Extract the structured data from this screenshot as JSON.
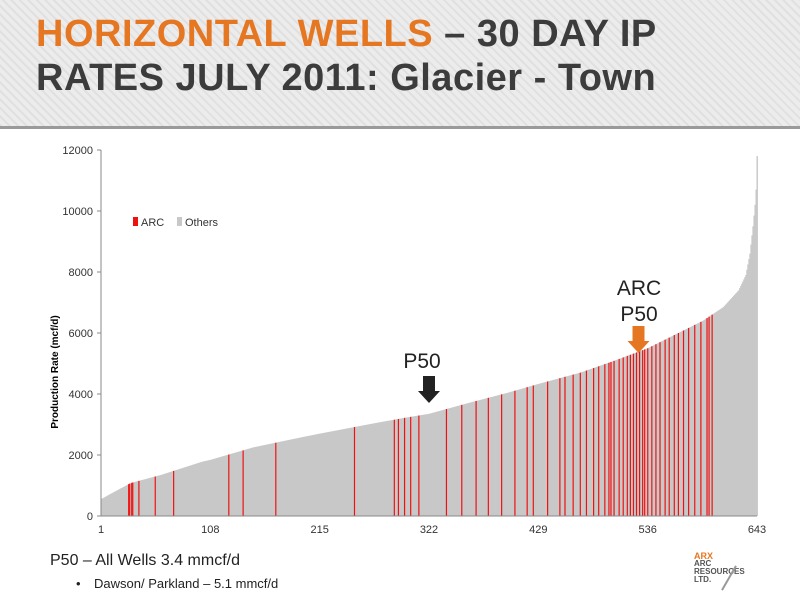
{
  "header": {
    "title_accent": "HORIZONTAL WELLS",
    "title_rest": " – 30 DAY IP",
    "title_line2": "RATES JULY 2011: Glacier - Town"
  },
  "chart_data": {
    "type": "bar",
    "ylabel": "Production Rate (mcf/d)",
    "xlabel": "",
    "ylim": [
      0,
      12000
    ],
    "yticks": [
      0,
      2000,
      4000,
      6000,
      8000,
      10000,
      12000
    ],
    "x_range": [
      1,
      643
    ],
    "xtick_labels": [
      "1",
      "108",
      "215",
      "322",
      "429",
      "536",
      "643"
    ],
    "grid": "none",
    "legend_position": "top-left",
    "series": [
      {
        "name": "ARC",
        "color": "#ee1111"
      },
      {
        "name": "Others",
        "color": "#c8c8c8"
      }
    ],
    "sorted_curve": {
      "x": [
        1,
        10,
        30,
        60,
        100,
        108,
        150,
        200,
        215,
        270,
        300,
        322,
        360,
        400,
        429,
        470,
        500,
        536,
        560,
        590,
        610,
        625,
        632,
        636,
        639,
        641,
        642,
        643
      ],
      "y": [
        550,
        720,
        1080,
        1350,
        1780,
        1840,
        2250,
        2600,
        2700,
        3050,
        3230,
        3350,
        3700,
        4050,
        4330,
        4700,
        5050,
        5500,
        5900,
        6400,
        6850,
        7400,
        7900,
        8600,
        9500,
        10200,
        10700,
        11800
      ]
    },
    "arc_well_ranks": [
      28,
      29,
      31,
      32,
      38,
      54,
      72,
      126,
      140,
      172,
      249,
      288,
      292,
      298,
      304,
      312,
      339,
      354,
      368,
      380,
      393,
      406,
      418,
      424,
      438,
      450,
      455,
      463,
      470,
      476,
      483,
      488,
      494,
      498,
      500,
      503,
      508,
      512,
      516,
      519,
      522,
      525,
      528,
      531,
      533,
      536,
      540,
      544,
      548,
      553,
      557,
      562,
      566,
      571,
      576,
      582,
      588,
      594,
      596,
      599
    ],
    "annotations": [
      {
        "label": "P50",
        "x": 322,
        "arrow_color": "#222222"
      },
      {
        "label_line1": "ARC",
        "label_line2": "P50",
        "x": 527,
        "arrow_color": "#e67722"
      }
    ]
  },
  "footer": {
    "main": "P50 – All Wells 3.4 mmcf/d",
    "bullet": "•",
    "sub": "Dawson/ Parkland – 5.1 mmcf/d"
  },
  "logo": {
    "line1": "ARX",
    "line2": "ARC",
    "line3": "RESOURCES",
    "line4": "LTD."
  }
}
